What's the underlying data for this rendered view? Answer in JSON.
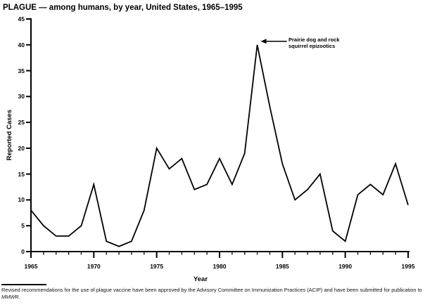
{
  "chart_data": {
    "type": "line",
    "title": "PLAGUE — among humans, by year, United States, 1965–1995",
    "xlabel": "Year",
    "ylabel": "Reported Cases",
    "x": [
      1965,
      1966,
      1967,
      1968,
      1969,
      1970,
      1971,
      1972,
      1973,
      1974,
      1975,
      1976,
      1977,
      1978,
      1979,
      1980,
      1981,
      1982,
      1983,
      1984,
      1985,
      1986,
      1987,
      1988,
      1989,
      1990,
      1991,
      1992,
      1993,
      1994,
      1995
    ],
    "values": [
      8,
      5,
      3,
      3,
      5,
      13,
      2,
      1,
      2,
      8,
      20,
      16,
      18,
      12,
      13,
      18,
      13,
      19,
      40,
      28,
      17,
      10,
      12,
      15,
      4,
      2,
      11,
      13,
      11,
      17,
      9
    ],
    "xlim": [
      1965,
      1995
    ],
    "ylim": [
      0,
      45
    ],
    "yticks": [
      0,
      5,
      10,
      15,
      20,
      25,
      30,
      35,
      40,
      45
    ],
    "xtick_labels": [
      1965,
      1970,
      1975,
      1980,
      1985,
      1990,
      1995
    ],
    "grid": false,
    "legend": null,
    "line_color": "#000000",
    "annotation": {
      "line1": "Prairie dog and rock",
      "line2": "squirrel epizootics",
      "target_year": 1983,
      "target_value": 40
    }
  },
  "footnote": {
    "line1": "Revised recommendations for the use of plague vaccine have been approved by the Advisory Committee on Immunization Practices (ACIP) and have been",
    "line2": "submitted for publication to ",
    "source": "MMWR",
    "period": "."
  }
}
